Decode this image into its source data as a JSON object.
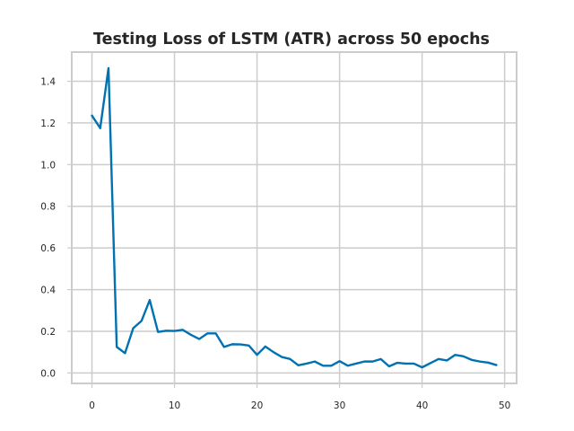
{
  "chart_data": {
    "type": "line",
    "title": "Testing Loss of LSTM (ATR) across 50 epochs",
    "xlabel": "",
    "ylabel": "",
    "xlim": [
      -2.45,
      51.45
    ],
    "ylim": [
      -0.05,
      1.54
    ],
    "xticks": [
      0,
      10,
      20,
      30,
      40,
      50
    ],
    "yticks": [
      0.0,
      0.2,
      0.4,
      0.6,
      0.8,
      1.0,
      1.2,
      1.4
    ],
    "ytick_labels": [
      "0.0",
      "0.2",
      "0.4",
      "0.6",
      "0.8",
      "1.0",
      "1.2",
      "1.4"
    ],
    "grid": true,
    "legend": false,
    "series": [
      {
        "color": "#0072b2",
        "x": [
          0,
          1,
          2,
          3,
          4,
          5,
          6,
          7,
          8,
          9,
          10,
          11,
          12,
          13,
          14,
          15,
          16,
          17,
          18,
          19,
          20,
          21,
          22,
          23,
          24,
          25,
          26,
          27,
          28,
          29,
          30,
          31,
          32,
          33,
          34,
          35,
          36,
          37,
          38,
          39,
          40,
          41,
          42,
          43,
          44,
          45,
          46,
          47,
          48,
          49
        ],
        "values": [
          1.235,
          1.175,
          1.463,
          0.125,
          0.095,
          0.215,
          0.25,
          0.35,
          0.197,
          0.203,
          0.202,
          0.207,
          0.183,
          0.163,
          0.19,
          0.19,
          0.125,
          0.138,
          0.137,
          0.132,
          0.087,
          0.127,
          0.1,
          0.077,
          0.067,
          0.037,
          0.045,
          0.055,
          0.035,
          0.035,
          0.057,
          0.035,
          0.045,
          0.055,
          0.055,
          0.067,
          0.032,
          0.049,
          0.045,
          0.045,
          0.027,
          0.047,
          0.067,
          0.06,
          0.087,
          0.08,
          0.063,
          0.055,
          0.05,
          0.038
        ]
      }
    ]
  }
}
